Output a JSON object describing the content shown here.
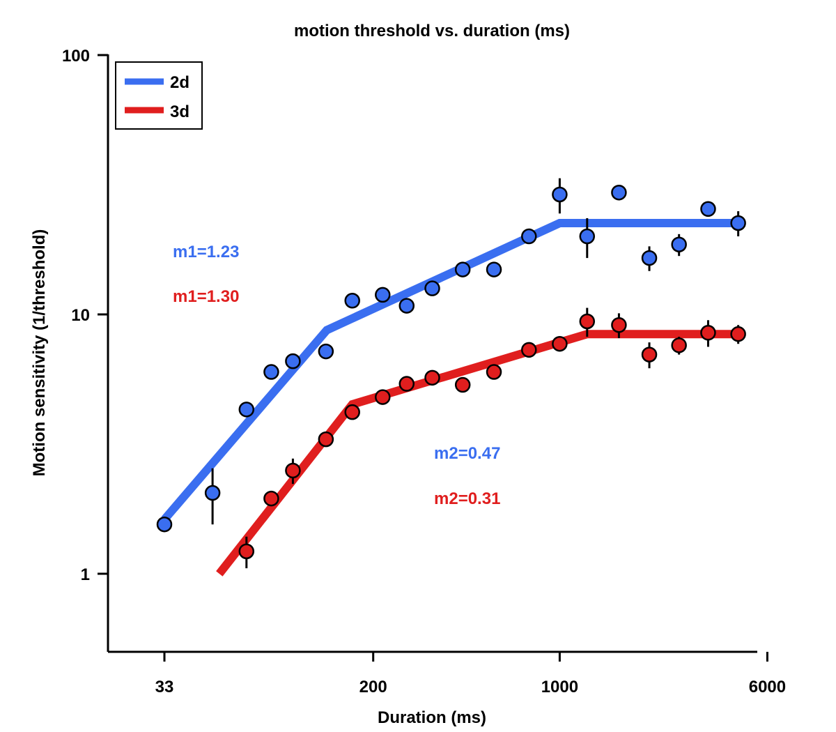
{
  "chart_data": {
    "type": "scatter",
    "title": "motion threshold vs. duration (ms)",
    "xlabel": "Duration (ms)",
    "ylabel": "Motion sensitivity (1/threshold)",
    "xscale": "log",
    "yscale": "log",
    "xlim": [
      28,
      6000
    ],
    "ylim": [
      0.5,
      100
    ],
    "xticks": [
      33,
      200,
      1000,
      6000
    ],
    "xtick_labels": [
      "33",
      "200",
      "1000",
      "6000"
    ],
    "yticks": [
      1,
      10,
      100
    ],
    "ytick_labels": [
      "1",
      "10",
      "100"
    ],
    "grid": false,
    "legend": {
      "placement": "top-left",
      "entries": [
        "2d",
        "3d"
      ]
    },
    "series": [
      {
        "name": "2d",
        "color": "#3a6ef0",
        "points": [
          {
            "x": 33,
            "y": 1.55,
            "err": 0.1
          },
          {
            "x": 50,
            "y": 2.05,
            "err": 0.5
          },
          {
            "x": 67,
            "y": 4.3,
            "err": 0.25
          },
          {
            "x": 83,
            "y": 6.0,
            "err": 0.3
          },
          {
            "x": 100,
            "y": 6.6,
            "err": 0.3
          },
          {
            "x": 133,
            "y": 7.2,
            "err": 0.25
          },
          {
            "x": 167,
            "y": 11.3,
            "err": 0.4
          },
          {
            "x": 217,
            "y": 11.9,
            "err": 0.4
          },
          {
            "x": 267,
            "y": 10.8,
            "err": 0.5
          },
          {
            "x": 333,
            "y": 12.6,
            "err": 0.5
          },
          {
            "x": 433,
            "y": 14.9,
            "err": 0.5
          },
          {
            "x": 567,
            "y": 14.9,
            "err": 0.5
          },
          {
            "x": 767,
            "y": 20.0,
            "err": 0.8
          },
          {
            "x": 1000,
            "y": 29.0,
            "err": 4.5
          },
          {
            "x": 1267,
            "y": 20.0,
            "err": 3.5
          },
          {
            "x": 1667,
            "y": 29.5,
            "err": 0.8
          },
          {
            "x": 2167,
            "y": 16.5,
            "err": 1.8
          },
          {
            "x": 2800,
            "y": 18.6,
            "err": 1.8
          },
          {
            "x": 3600,
            "y": 25.5,
            "err": 1.0
          },
          {
            "x": 4667,
            "y": 22.5,
            "err": 2.5
          }
        ],
        "fit": [
          {
            "x": 33,
            "y": 1.62
          },
          {
            "x": 134,
            "y": 8.7
          },
          {
            "x": 1000,
            "y": 22.5
          },
          {
            "x": 4667,
            "y": 22.5
          }
        ],
        "m1": "m1=1.23",
        "m2": "m2=0.47"
      },
      {
        "name": "3d",
        "color": "#e01e1e",
        "points": [
          {
            "x": 67,
            "y": 1.22,
            "err": 0.17
          },
          {
            "x": 83,
            "y": 1.95,
            "err": 0.12
          },
          {
            "x": 100,
            "y": 2.5,
            "err": 0.28
          },
          {
            "x": 133,
            "y": 3.3,
            "err": 0.2
          },
          {
            "x": 167,
            "y": 4.2,
            "err": 0.2
          },
          {
            "x": 217,
            "y": 4.8,
            "err": 0.2
          },
          {
            "x": 267,
            "y": 5.4,
            "err": 0.2
          },
          {
            "x": 333,
            "y": 5.7,
            "err": 0.2
          },
          {
            "x": 433,
            "y": 5.35,
            "err": 0.2
          },
          {
            "x": 567,
            "y": 6.0,
            "err": 0.2
          },
          {
            "x": 767,
            "y": 7.3,
            "err": 0.3
          },
          {
            "x": 1000,
            "y": 7.7,
            "err": 0.3
          },
          {
            "x": 1267,
            "y": 9.4,
            "err": 1.2
          },
          {
            "x": 1667,
            "y": 9.1,
            "err": 1.0
          },
          {
            "x": 2167,
            "y": 7.0,
            "err": 0.8
          },
          {
            "x": 2800,
            "y": 7.6,
            "err": 0.6
          },
          {
            "x": 3600,
            "y": 8.5,
            "err": 1.0
          },
          {
            "x": 4667,
            "y": 8.4,
            "err": 0.7
          }
        ],
        "fit": [
          {
            "x": 53,
            "y": 1.0
          },
          {
            "x": 167,
            "y": 4.5
          },
          {
            "x": 1267,
            "y": 8.4
          },
          {
            "x": 4667,
            "y": 8.4
          }
        ],
        "m1": "m1=1.30",
        "m2": "m2=0.31"
      }
    ]
  }
}
